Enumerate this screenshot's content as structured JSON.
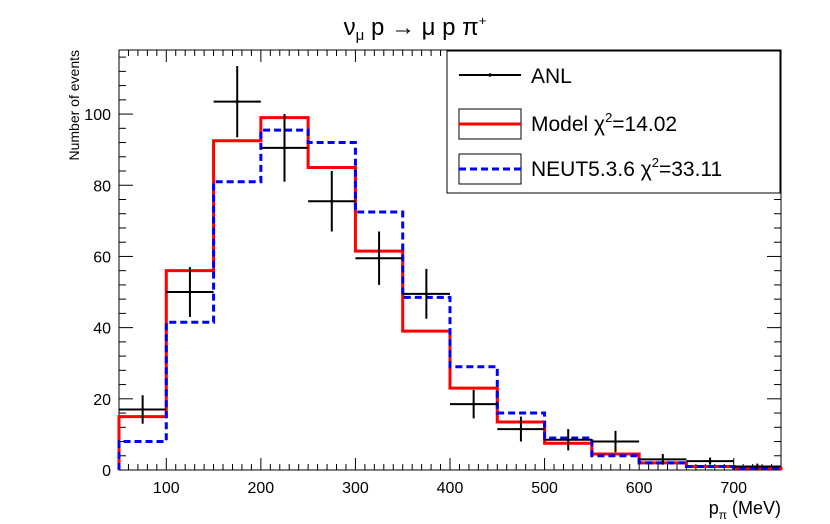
{
  "chart_data": {
    "type": "histogram",
    "title": "ν_μ p → μ p π⁺",
    "title_parts": {
      "nu": "ν",
      "mu_sub": "μ",
      "rest": " p → μ p π",
      "plus": "+"
    },
    "xlabel": {
      "base": "p",
      "sub": "π",
      "unit": " (MeV)"
    },
    "ylabel": "Number of events",
    "xlim": [
      50,
      750
    ],
    "ylim": [
      0,
      118
    ],
    "x_ticks": [
      100,
      200,
      300,
      400,
      500,
      600,
      700
    ],
    "y_ticks": [
      0,
      20,
      40,
      60,
      80,
      100
    ],
    "bin_edges": [
      50,
      100,
      150,
      200,
      250,
      300,
      350,
      400,
      450,
      500,
      550,
      600,
      650,
      700,
      750
    ],
    "series": [
      {
        "name": "Model",
        "kind": "step",
        "color": "#ff0000",
        "dash": "",
        "values": [
          15,
          56,
          92.5,
          99,
          85,
          61.5,
          39,
          23,
          13.5,
          7.5,
          4.5,
          2,
          1,
          0.5
        ]
      },
      {
        "name": "NEUT5.3.6",
        "kind": "step",
        "color": "#0000ff",
        "dash": "7,4",
        "values": [
          8,
          41.5,
          81,
          95.5,
          92,
          72.5,
          48.5,
          29,
          16,
          9,
          4,
          2,
          1,
          0.5
        ]
      },
      {
        "name": "ANL",
        "kind": "errorbar",
        "color": "#000000",
        "x": [
          75,
          125,
          175,
          225,
          275,
          325,
          375,
          425,
          475,
          525,
          575,
          625,
          675,
          725
        ],
        "y": [
          17,
          50,
          103.5,
          90.5,
          75.5,
          59.5,
          49.5,
          18.5,
          11.5,
          8.5,
          8,
          3,
          2.5,
          1
        ],
        "yerr": [
          4,
          7,
          10,
          9.5,
          8.5,
          7.5,
          7,
          4,
          3.5,
          3,
          3,
          1.5,
          1,
          0.8
        ]
      }
    ],
    "legend": {
      "position": "top-right",
      "entries": [
        {
          "series": "ANL",
          "label": "ANL",
          "chi2": ""
        },
        {
          "series": "Model",
          "label": "Model χ",
          "chi2": "=14.02"
        },
        {
          "series": "NEUT5.3.6",
          "label": "NEUT5.3.6 χ",
          "chi2": "=33.11"
        }
      ],
      "chi_sup": "2"
    }
  }
}
